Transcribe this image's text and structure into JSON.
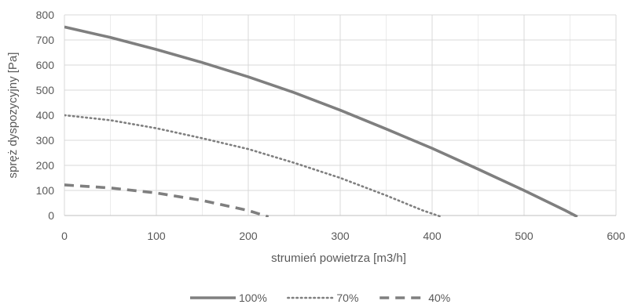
{
  "chart_data": {
    "type": "line",
    "xlabel": "strumień powietrza [m3/h]",
    "ylabel": "spręż dyspozycyjny [Pa]",
    "xlim": [
      0,
      600
    ],
    "ylim": [
      0,
      800
    ],
    "x_ticks": [
      0,
      100,
      200,
      300,
      400,
      500,
      600
    ],
    "y_ticks": [
      0,
      100,
      200,
      300,
      400,
      500,
      600,
      700,
      800
    ],
    "x_tick_labels": [
      "0",
      "100",
      "200",
      "300",
      "400",
      "500",
      "600"
    ],
    "y_tick_labels": [
      "0",
      "100",
      "200",
      "300",
      "400",
      "500",
      "600",
      "700",
      "800"
    ],
    "grid": true,
    "legend_position": "bottom",
    "series": [
      {
        "name": "100%",
        "style": "solid",
        "color": "#7f7f7f",
        "points": [
          [
            0,
            752
          ],
          [
            50,
            710
          ],
          [
            100,
            662
          ],
          [
            150,
            610
          ],
          [
            200,
            553
          ],
          [
            250,
            490
          ],
          [
            300,
            420
          ],
          [
            350,
            345
          ],
          [
            400,
            268
          ],
          [
            450,
            185
          ],
          [
            500,
            100
          ],
          [
            545,
            20
          ],
          [
            558,
            -5
          ]
        ]
      },
      {
        "name": "70%",
        "style": "dotted",
        "color": "#7f7f7f",
        "points": [
          [
            0,
            400
          ],
          [
            50,
            380
          ],
          [
            100,
            348
          ],
          [
            150,
            308
          ],
          [
            200,
            265
          ],
          [
            250,
            210
          ],
          [
            300,
            150
          ],
          [
            350,
            80
          ],
          [
            390,
            20
          ],
          [
            410,
            -5
          ]
        ]
      },
      {
        "name": "40%",
        "style": "dashed",
        "color": "#7f7f7f",
        "points": [
          [
            0,
            122
          ],
          [
            50,
            110
          ],
          [
            100,
            90
          ],
          [
            150,
            60
          ],
          [
            200,
            20
          ],
          [
            222,
            -5
          ]
        ]
      }
    ]
  }
}
